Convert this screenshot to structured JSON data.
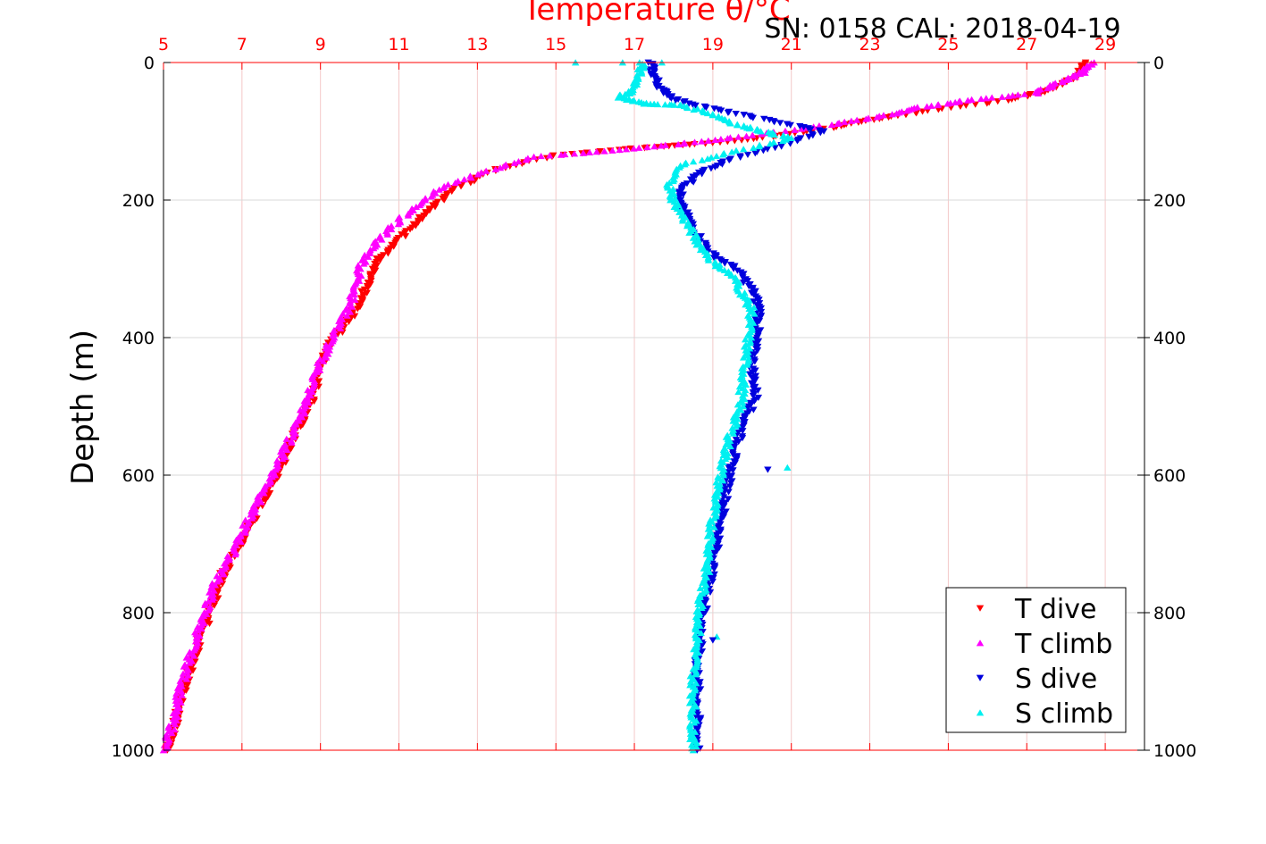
{
  "chart_data": {
    "type": "scatter",
    "title": "Temperature θ/°C",
    "subtitle": "SN: 0158  CAL: 2018-04-19",
    "ylabel": "Depth (m)",
    "xlabel_top": "Temperature θ/°C",
    "x_range": [
      5,
      30
    ],
    "y_range": [
      0,
      1000
    ],
    "y_reversed": true,
    "x_ticks": [
      "5",
      "7",
      "9",
      "11",
      "13",
      "15",
      "17",
      "19",
      "21",
      "23",
      "25",
      "27",
      "29"
    ],
    "y_ticks": [
      "0",
      "200",
      "400",
      "600",
      "800",
      "1000"
    ],
    "grid": true,
    "legend_position": "bottom-right",
    "colors": {
      "t_dive": "#ff0000",
      "t_climb": "#ff00ff",
      "s_dive": "#0000dd",
      "s_climb": "#00f0f0",
      "temp_axis": "#ff0000",
      "grid_temp": "#f4c8c8",
      "grid_depth": "#d9d9d9"
    },
    "series": [
      {
        "name": "T dive",
        "marker": "triangle-down",
        "color": "#ff0000",
        "points": [
          [
            28.5,
            0
          ],
          [
            28.3,
            20
          ],
          [
            27.6,
            40
          ],
          [
            26.5,
            55
          ],
          [
            24.5,
            70
          ],
          [
            23.2,
            82
          ],
          [
            22.0,
            95
          ],
          [
            20.5,
            108
          ],
          [
            18.8,
            118
          ],
          [
            17.0,
            125
          ],
          [
            15.0,
            135
          ],
          [
            13.5,
            155
          ],
          [
            12.4,
            185
          ],
          [
            11.8,
            215
          ],
          [
            11.3,
            240
          ],
          [
            10.9,
            265
          ],
          [
            10.4,
            290
          ],
          [
            10.2,
            320
          ],
          [
            10.0,
            350
          ],
          [
            9.6,
            385
          ],
          [
            9.2,
            410
          ],
          [
            9.0,
            445
          ],
          [
            8.8,
            490
          ],
          [
            8.3,
            545
          ],
          [
            7.9,
            600
          ],
          [
            7.4,
            650
          ],
          [
            7.0,
            700
          ],
          [
            6.5,
            745
          ],
          [
            6.2,
            800
          ],
          [
            5.9,
            845
          ],
          [
            5.6,
            900
          ],
          [
            5.3,
            960
          ],
          [
            5.1,
            1000
          ]
        ]
      },
      {
        "name": "T climb",
        "marker": "triangle-up",
        "color": "#ff00ff",
        "points": [
          [
            28.7,
            0
          ],
          [
            28.4,
            15
          ],
          [
            27.8,
            30
          ],
          [
            27.2,
            45
          ],
          [
            25.5,
            55
          ],
          [
            24.3,
            65
          ],
          [
            23.3,
            78
          ],
          [
            21.8,
            92
          ],
          [
            19.8,
            107
          ],
          [
            18.2,
            118
          ],
          [
            16.5,
            128
          ],
          [
            14.5,
            137
          ],
          [
            13.1,
            160
          ],
          [
            12.0,
            185
          ],
          [
            11.4,
            210
          ],
          [
            10.8,
            240
          ],
          [
            10.3,
            270
          ],
          [
            10.0,
            300
          ],
          [
            9.9,
            330
          ],
          [
            9.7,
            360
          ],
          [
            9.3,
            400
          ],
          [
            8.9,
            450
          ],
          [
            8.6,
            500
          ],
          [
            8.2,
            550
          ],
          [
            7.8,
            600
          ],
          [
            7.2,
            660
          ],
          [
            6.8,
            710
          ],
          [
            6.3,
            760
          ],
          [
            6.0,
            810
          ],
          [
            5.7,
            860
          ],
          [
            5.4,
            920
          ],
          [
            5.2,
            970
          ],
          [
            5.0,
            1000
          ]
        ]
      },
      {
        "name": "S dive",
        "marker": "triangle-down",
        "color": "#0000dd",
        "points": [
          [
            17.4,
            0
          ],
          [
            17.5,
            20
          ],
          [
            17.7,
            40
          ],
          [
            18.1,
            55
          ],
          [
            19.2,
            70
          ],
          [
            20.5,
            85
          ],
          [
            21.8,
            100
          ],
          [
            20.8,
            120
          ],
          [
            19.5,
            140
          ],
          [
            18.7,
            160
          ],
          [
            18.3,
            180
          ],
          [
            18.1,
            200
          ],
          [
            18.3,
            220
          ],
          [
            18.6,
            250
          ],
          [
            19.0,
            280
          ],
          [
            19.6,
            300
          ],
          [
            20.0,
            330
          ],
          [
            20.2,
            360
          ],
          [
            20.1,
            400
          ],
          [
            20.0,
            440
          ],
          [
            20.1,
            490
          ],
          [
            19.8,
            520
          ],
          [
            19.5,
            580
          ],
          [
            19.3,
            640
          ],
          [
            19.1,
            700
          ],
          [
            18.9,
            760
          ],
          [
            18.7,
            820
          ],
          [
            18.6,
            880
          ],
          [
            18.6,
            940
          ],
          [
            18.6,
            1000
          ]
        ]
      },
      {
        "name": "S climb",
        "marker": "triangle-up",
        "color": "#00f0f0",
        "points": [
          [
            17.2,
            0
          ],
          [
            17.1,
            20
          ],
          [
            17.0,
            40
          ],
          [
            16.6,
            50
          ],
          [
            17.3,
            60
          ],
          [
            18.2,
            62
          ],
          [
            19.0,
            75
          ],
          [
            19.6,
            90
          ],
          [
            20.3,
            100
          ],
          [
            21.0,
            110
          ],
          [
            19.5,
            130
          ],
          [
            18.1,
            150
          ],
          [
            17.9,
            180
          ],
          [
            18.0,
            200
          ],
          [
            18.3,
            230
          ],
          [
            18.6,
            260
          ],
          [
            19.0,
            290
          ],
          [
            19.5,
            310
          ],
          [
            19.8,
            340
          ],
          [
            20.0,
            360
          ],
          [
            19.9,
            400
          ],
          [
            19.8,
            450
          ],
          [
            19.7,
            500
          ],
          [
            19.4,
            550
          ],
          [
            19.2,
            600
          ],
          [
            19.0,
            660
          ],
          [
            18.9,
            720
          ],
          [
            18.7,
            780
          ],
          [
            18.6,
            840
          ],
          [
            18.5,
            900
          ],
          [
            18.5,
            960
          ],
          [
            18.5,
            1000
          ]
        ]
      }
    ],
    "outliers": [
      {
        "series": "S dive",
        "x": 20.4,
        "y": 592
      },
      {
        "series": "S climb",
        "x": 20.9,
        "y": 589
      },
      {
        "series": "S climb",
        "x": 19.1,
        "y": 835
      },
      {
        "series": "S dive",
        "x": 19.0,
        "y": 840
      },
      {
        "series": "S climb",
        "x": 15.5,
        "y": 0
      },
      {
        "series": "S climb",
        "x": 16.7,
        "y": 0
      },
      {
        "series": "S climb",
        "x": 17.7,
        "y": 0
      }
    ]
  }
}
